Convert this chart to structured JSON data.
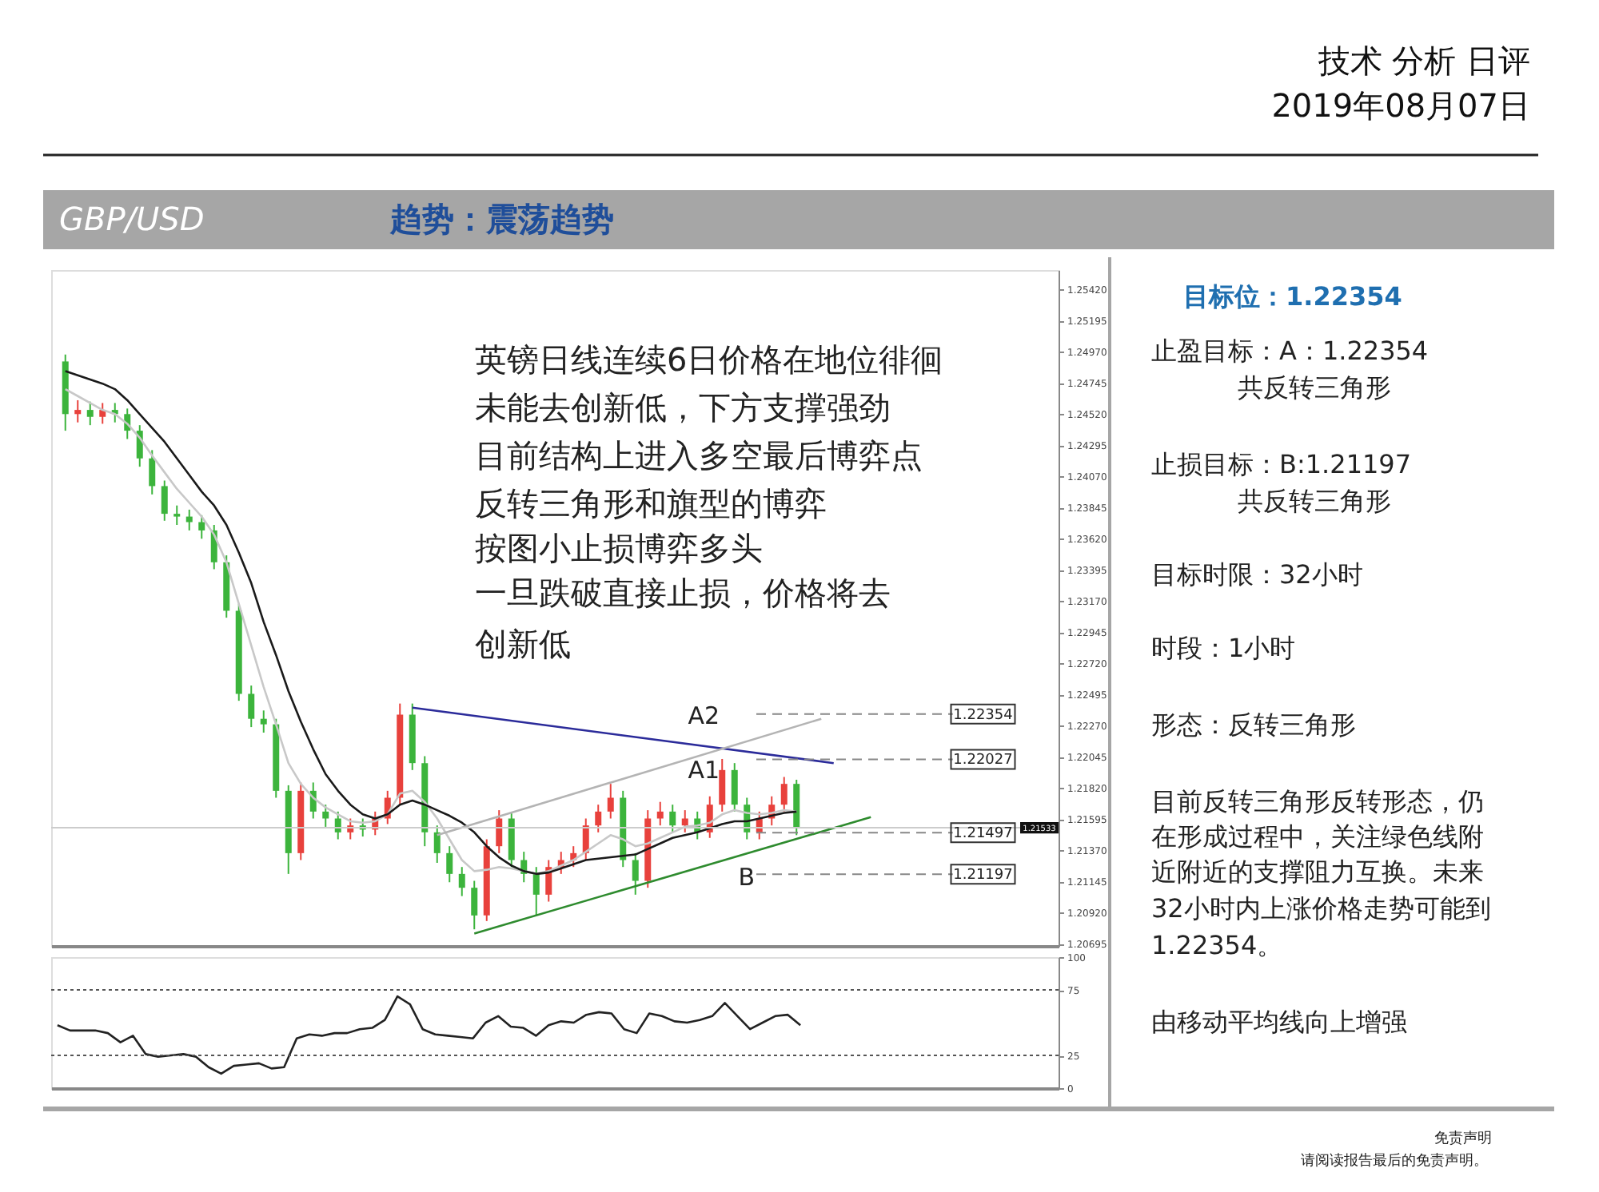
{
  "chart_data": [
    {
      "type": "candlestick",
      "categories": [
        null,
        null,
        null,
        null,
        null,
        null,
        null,
        null,
        null,
        null,
        null,
        null,
        null,
        null,
        null,
        null,
        null,
        null,
        null,
        null,
        null,
        null,
        null,
        null,
        null,
        null,
        null,
        null,
        null,
        null,
        null,
        null,
        null,
        null,
        null,
        null,
        null,
        null,
        null,
        null,
        null,
        null,
        null,
        null,
        null,
        null,
        null,
        null,
        null,
        null,
        null,
        null,
        null,
        null,
        null,
        null,
        null,
        null,
        null,
        null,
        null,
        null,
        null,
        null,
        null,
        null,
        null,
        null,
        null,
        null,
        null,
        null,
        null,
        null,
        null,
        null,
        null,
        null,
        null,
        null
      ],
      "ohlc": [
        [
          1.249,
          1.2495,
          1.244,
          1.2452
        ],
        [
          1.2452,
          1.2462,
          1.2446,
          1.2455
        ],
        [
          1.2455,
          1.2461,
          1.2444,
          1.245
        ],
        [
          1.245,
          1.246,
          1.2445,
          1.2455
        ],
        [
          1.2455,
          1.246,
          1.2446,
          1.2452
        ],
        [
          1.2452,
          1.2456,
          1.2434,
          1.244
        ],
        [
          1.244,
          1.2444,
          1.2414,
          1.242
        ],
        [
          1.242,
          1.2426,
          1.2394,
          1.24
        ],
        [
          1.24,
          1.2404,
          1.2375,
          1.238
        ],
        [
          1.238,
          1.2386,
          1.2372,
          1.2378
        ],
        [
          1.2378,
          1.2383,
          1.2368,
          1.2374
        ],
        [
          1.2374,
          1.2379,
          1.2362,
          1.2368
        ],
        [
          1.2368,
          1.2372,
          1.234,
          1.2345
        ],
        [
          1.2345,
          1.235,
          1.2305,
          1.231
        ],
        [
          1.231,
          1.2315,
          1.2245,
          1.225
        ],
        [
          1.225,
          1.2256,
          1.2226,
          1.2232
        ],
        [
          1.2232,
          1.2238,
          1.2222,
          1.2228
        ],
        [
          1.2228,
          1.2232,
          1.2175,
          1.218
        ],
        [
          1.218,
          1.2184,
          1.212,
          1.2135
        ],
        [
          1.2135,
          1.2186,
          1.213,
          1.218
        ],
        [
          1.218,
          1.2186,
          1.216,
          1.2165
        ],
        [
          1.2165,
          1.217,
          1.2154,
          1.216
        ],
        [
          1.216,
          1.2165,
          1.2145,
          1.215
        ],
        [
          1.215,
          1.216,
          1.2145,
          1.2155
        ],
        [
          1.2155,
          1.216,
          1.2147,
          1.2152
        ],
        [
          1.2152,
          1.2165,
          1.2148,
          1.216
        ],
        [
          1.216,
          1.218,
          1.2156,
          1.2175
        ],
        [
          1.2175,
          1.2243,
          1.217,
          1.2235
        ],
        [
          1.2235,
          1.2243,
          1.2195,
          1.22
        ],
        [
          1.22,
          1.2205,
          1.214,
          1.215
        ],
        [
          1.215,
          1.2155,
          1.2128,
          1.2135
        ],
        [
          1.2135,
          1.214,
          1.2114,
          1.212
        ],
        [
          1.212,
          1.2125,
          1.2104,
          1.211
        ],
        [
          1.211,
          1.2115,
          1.208,
          1.209
        ],
        [
          1.209,
          1.2145,
          1.2086,
          1.214
        ],
        [
          1.214,
          1.2166,
          1.2135,
          1.216
        ],
        [
          1.216,
          1.2164,
          1.2125,
          1.213
        ],
        [
          1.213,
          1.2136,
          1.2114,
          1.212
        ],
        [
          1.212,
          1.2125,
          1.209,
          1.2105
        ],
        [
          1.2105,
          1.213,
          1.21,
          1.2125
        ],
        [
          1.2125,
          1.2136,
          1.212,
          1.213
        ],
        [
          1.213,
          1.214,
          1.2125,
          1.2135
        ],
        [
          1.2135,
          1.216,
          1.213,
          1.2155
        ],
        [
          1.2155,
          1.217,
          1.215,
          1.2165
        ],
        [
          1.2165,
          1.2185,
          1.216,
          1.2175
        ],
        [
          1.2175,
          1.218,
          1.2125,
          1.213
        ],
        [
          1.213,
          1.2135,
          1.2105,
          1.2115
        ],
        [
          1.2115,
          1.2166,
          1.211,
          1.216
        ],
        [
          1.216,
          1.2172,
          1.2155,
          1.2165
        ],
        [
          1.2165,
          1.217,
          1.215,
          1.2155
        ],
        [
          1.2155,
          1.2166,
          1.215,
          1.216
        ],
        [
          1.216,
          1.2165,
          1.2145,
          1.215
        ],
        [
          1.215,
          1.2176,
          1.2146,
          1.217
        ],
        [
          1.217,
          1.2203,
          1.2165,
          1.2195
        ],
        [
          1.2195,
          1.22,
          1.2165,
          1.217
        ],
        [
          1.217,
          1.2175,
          1.2145,
          1.215
        ],
        [
          1.215,
          1.2165,
          1.2145,
          1.216
        ],
        [
          1.216,
          1.2176,
          1.2155,
          1.217
        ],
        [
          1.217,
          1.219,
          1.2165,
          1.2185
        ],
        [
          1.2185,
          1.2188,
          1.2148,
          1.2153
        ],
        null,
        null,
        null,
        null,
        null,
        null,
        null,
        null,
        null,
        null,
        null,
        null,
        null,
        null,
        null,
        null,
        null,
        null,
        null,
        null
      ],
      "colors": [
        "#3cb43c",
        "#e8413c",
        "#3cb43c",
        "#e8413c",
        "#3cb43c",
        "#3cb43c",
        "#3cb43c",
        "#3cb43c",
        "#3cb43c",
        "#3cb43c",
        "#3cb43c",
        "#3cb43c",
        "#3cb43c",
        "#3cb43c",
        "#3cb43c",
        "#3cb43c",
        "#3cb43c",
        "#3cb43c",
        "#3cb43c",
        "#e8413c",
        "#3cb43c",
        "#3cb43c",
        "#3cb43c",
        "#e8413c",
        "#3cb43c",
        "#e8413c",
        "#e8413c",
        "#e8413c",
        "#3cb43c",
        "#3cb43c",
        "#3cb43c",
        "#3cb43c",
        "#3cb43c",
        "#3cb43c",
        "#e8413c",
        "#e8413c",
        "#3cb43c",
        "#3cb43c",
        "#3cb43c",
        "#e8413c",
        "#e8413c",
        "#e8413c",
        "#e8413c",
        "#e8413c",
        "#e8413c",
        "#3cb43c",
        "#3cb43c",
        "#e8413c",
        "#e8413c",
        "#3cb43c",
        "#e8413c",
        "#3cb43c",
        "#e8413c",
        "#e8413c",
        "#3cb43c",
        "#3cb43c",
        "#e8413c",
        "#e8413c",
        "#e8413c",
        "#3cb43c",
        null,
        null,
        null,
        null,
        null,
        null,
        null,
        null,
        null,
        null,
        null,
        null,
        null,
        null,
        null,
        null,
        null,
        null,
        null,
        null
      ],
      "series": [
        {
          "type": "line",
          "color": "#c8c8c8",
          "values": [
            1.247,
            1.2465,
            1.246,
            1.2455,
            1.2452,
            1.2445,
            1.2435,
            1.2422,
            1.241,
            1.2398,
            1.2388,
            1.2378,
            1.2365,
            1.2345,
            1.2315,
            1.2285,
            1.2255,
            1.2228,
            1.22,
            1.2185,
            1.2175,
            1.2168,
            1.2163,
            1.2158,
            1.2157,
            1.2158,
            1.2163,
            1.2178,
            1.218,
            1.2172,
            1.216,
            1.2145,
            1.213,
            1.2122,
            1.2123,
            1.2125,
            1.2124,
            1.2122,
            1.212,
            1.2122,
            1.2126,
            1.213,
            1.2136,
            1.2142,
            1.2148,
            1.2145,
            1.214,
            1.2142,
            1.2146,
            1.215,
            1.2154,
            1.2155,
            1.2157,
            1.2163,
            1.2166,
            1.2164,
            1.2163,
            1.2164,
            1.2166,
            1.2165,
            null,
            null,
            null,
            null,
            null,
            null,
            null,
            null,
            null,
            null,
            null,
            null,
            null,
            null,
            null,
            null,
            null,
            null,
            null,
            null
          ]
        },
        {
          "type": "line",
          "color": "#1a1a1a",
          "values": [
            1.2483,
            1.248,
            1.2477,
            1.2474,
            1.247,
            1.2462,
            1.2452,
            1.2442,
            1.2432,
            1.242,
            1.2408,
            1.2396,
            1.2386,
            1.2372,
            1.2352,
            1.233,
            1.2302,
            1.2278,
            1.2252,
            1.223,
            1.221,
            1.2192,
            1.218,
            1.217,
            1.2163,
            1.216,
            1.2163,
            1.217,
            1.2173,
            1.217,
            1.2166,
            1.2162,
            1.2157,
            1.215,
            1.214,
            1.2132,
            1.2126,
            1.2122,
            1.212,
            1.2121,
            1.2124,
            1.2127,
            1.213,
            1.2131,
            1.2132,
            1.2133,
            1.2134,
            1.2138,
            1.2142,
            1.2146,
            1.2148,
            1.215,
            1.2153,
            1.2156,
            1.2158,
            1.2158,
            1.216,
            1.2162,
            1.2164,
            1.2165,
            null,
            null,
            null,
            null,
            null,
            null,
            null,
            null,
            null,
            null,
            null,
            null,
            null,
            null,
            null,
            null,
            null,
            null,
            null,
            null
          ]
        },
        {
          "type": "line",
          "color": "#2b2b9a",
          "values": [
            null,
            null,
            null,
            null,
            null,
            null,
            null,
            null,
            null,
            null,
            null,
            null,
            null,
            null,
            null,
            null,
            null,
            null,
            null,
            null,
            null,
            null,
            null,
            null,
            null,
            null,
            null,
            null,
            1.224,
            null,
            null,
            null,
            null,
            null,
            null,
            null,
            null,
            null,
            null,
            null,
            null,
            null,
            null,
            null,
            null,
            null,
            null,
            null,
            null,
            null,
            null,
            null,
            null,
            null,
            null,
            null,
            null,
            null,
            null,
            null,
            null,
            null,
            1.22,
            null,
            null,
            null,
            null,
            null,
            null,
            null,
            null,
            null,
            null,
            null,
            null,
            null,
            null,
            null,
            null,
            null
          ]
        },
        {
          "type": "line",
          "color": "#2e8b2e",
          "values": [
            null,
            null,
            null,
            null,
            null,
            null,
            null,
            null,
            null,
            null,
            null,
            null,
            null,
            null,
            null,
            null,
            null,
            null,
            null,
            null,
            null,
            null,
            null,
            null,
            null,
            null,
            null,
            null,
            null,
            null,
            null,
            null,
            null,
            1.2077,
            null,
            null,
            null,
            null,
            null,
            null,
            null,
            null,
            null,
            null,
            null,
            null,
            null,
            null,
            null,
            null,
            null,
            null,
            null,
            null,
            null,
            null,
            null,
            null,
            null,
            null,
            null,
            null,
            null,
            null,
            null,
            1.2161,
            null,
            null,
            null,
            null,
            null,
            null,
            null,
            null,
            null,
            null,
            null,
            null,
            null,
            null
          ]
        },
        {
          "type": "line",
          "color": "#b4b4b4",
          "values": [
            null,
            null,
            null,
            null,
            null,
            null,
            null,
            null,
            null,
            null,
            null,
            null,
            null,
            null,
            null,
            null,
            null,
            null,
            null,
            null,
            null,
            null,
            null,
            null,
            null,
            null,
            null,
            null,
            null,
            null,
            1.2148,
            null,
            null,
            null,
            null,
            null,
            null,
            null,
            null,
            null,
            null,
            null,
            null,
            null,
            null,
            null,
            null,
            null,
            null,
            null,
            null,
            null,
            null,
            null,
            null,
            null,
            null,
            null,
            null,
            null,
            null,
            1.2232,
            null,
            null,
            null,
            null,
            null,
            null,
            null,
            null,
            null,
            null,
            null,
            null,
            null,
            null,
            null,
            null,
            null,
            null
          ]
        }
      ],
      "ylim": [
        1.2068,
        1.2556
      ],
      "yticks": [
        {
          "value": 1.2542,
          "label": "1.25420"
        },
        {
          "value": 1.25195,
          "label": "1.25195"
        },
        {
          "value": 1.2497,
          "label": "1.24970"
        },
        {
          "value": 1.24745,
          "label": "1.24745"
        },
        {
          "value": 1.2452,
          "label": "1.24520"
        },
        {
          "value": 1.24295,
          "label": "1.24295"
        },
        {
          "value": 1.2407,
          "label": "1.24070"
        },
        {
          "value": 1.23845,
          "label": "1.23845"
        },
        {
          "value": 1.2362,
          "label": "1.23620"
        },
        {
          "value": 1.23395,
          "label": "1.23395"
        },
        {
          "value": 1.2317,
          "label": "1.23170"
        },
        {
          "value": 1.22945,
          "label": "1.22945"
        },
        {
          "value": 1.2272,
          "label": "1.22720"
        },
        {
          "value": 1.22495,
          "label": "1.22495"
        },
        {
          "value": 1.2227,
          "label": "1.22270"
        },
        {
          "value": 1.22045,
          "label": "1.22045"
        },
        {
          "value": 1.2182,
          "label": "1.21820"
        },
        {
          "value": 1.21595,
          "label": "1.21595"
        },
        {
          "value": 1.2137,
          "label": "1.21370"
        },
        {
          "value": 1.21145,
          "label": "1.21145"
        },
        {
          "value": 1.2092,
          "label": "1.20920"
        },
        {
          "value": 1.20695,
          "label": "1.20695"
        }
      ],
      "ref_lines": [
        {
          "axis": "y",
          "value": 1.21533,
          "label": "1.21533",
          "color": "#cccccc",
          "line_style": "solid"
        },
        {
          "axis": "y",
          "value": 1.22354,
          "label": "1.22354",
          "color": "#888888",
          "line_style": "dashed"
        },
        {
          "axis": "y",
          "value": 1.22027,
          "label": "1.22027",
          "color": "#888888",
          "line_style": "dashed"
        },
        {
          "axis": "y",
          "value": 1.21497,
          "label": "1.21497",
          "color": "#888888",
          "line_style": "dashed"
        },
        {
          "axis": "y",
          "value": 1.21197,
          "label": "1.21197",
          "color": "#888888",
          "line_style": "dashed"
        }
      ],
      "annotations": [
        "技术 分析 日评",
        "2019年08月07日",
        "GBP/USD",
        "趋势：震荡趋势",
        "英镑日线连续6日价格在地位徘徊",
        "未能去创新低，下方支撑强劲",
        "目前结构上进入多空最后博弈点",
        "反转三角形和旗型的博弈",
        "按图小止损博弈多头",
        "一旦跌破直接止损，价格将去",
        "创新低",
        "目标位：1.22354",
        "止盈目标：A：1.22354",
        "共反转三角形",
        "止损目标：B:1.21197",
        "共反转三角形",
        "目标时限：32小时",
        "时段：1小时",
        "形态：反转三角形",
        "目前反转三角形反转形态，仍",
        "在形成过程中，关注绿色线附",
        "近附近的支撑阻力互换。未来",
        "32小时内上涨价格走势可能到",
        "1.22354。",
        "由移动平均线向上增强",
        "免责声明",
        "请阅读报告最后的免责声明。",
        "A2",
        "A1",
        "B"
      ],
      "tick_labels": "y"
    },
    {
      "type": "line",
      "categories": [
        null,
        null,
        null,
        null,
        null,
        null,
        null,
        null,
        null,
        null,
        null,
        null,
        null,
        null,
        null,
        null,
        null,
        null,
        null,
        null,
        null,
        null,
        null,
        null,
        null,
        null,
        null,
        null,
        null,
        null,
        null,
        null,
        null,
        null,
        null,
        null,
        null,
        null,
        null,
        null,
        null,
        null,
        null,
        null,
        null,
        null,
        null,
        null,
        null,
        null,
        null,
        null,
        null,
        null,
        null,
        null,
        null,
        null,
        null,
        null,
        null,
        null,
        null,
        null,
        null,
        null,
        null,
        null,
        null,
        null,
        null,
        null,
        null,
        null,
        null,
        null,
        null,
        null,
        null,
        null
      ],
      "series": [
        {
          "color": "#222222",
          "values": [
            48,
            44,
            44,
            44,
            42,
            35,
            40,
            26,
            24,
            25,
            26,
            24,
            16,
            11,
            17,
            18,
            19,
            15,
            16,
            38,
            41,
            40,
            42,
            42,
            45,
            46,
            52,
            70,
            64,
            45,
            41,
            40,
            39,
            38,
            50,
            55,
            47,
            46,
            40,
            48,
            51,
            50,
            56,
            58,
            57,
            45,
            42,
            57,
            55,
            51,
            50,
            52,
            55,
            65,
            55,
            45,
            50,
            55,
            56,
            48,
            null,
            null,
            null,
            null,
            null,
            null,
            null,
            null,
            null,
            null,
            null,
            null,
            null,
            null,
            null,
            null,
            null,
            null,
            null,
            null
          ]
        }
      ],
      "ylim": [
        0,
        100
      ],
      "yticks": [
        100,
        75,
        25,
        0
      ],
      "ref_lines": [
        {
          "axis": "y",
          "value": 75,
          "color": "#555555",
          "line_style": "dotted"
        },
        {
          "axis": "y",
          "value": 25,
          "color": "#555555",
          "line_style": "dotted"
        }
      ],
      "tick_labels": "y"
    }
  ]
}
